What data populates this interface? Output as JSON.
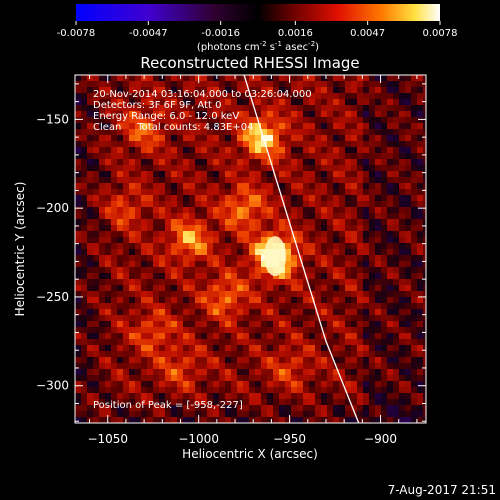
{
  "chart_data": {
    "type": "heatmap",
    "title": "Reconstructed RHESSI Image",
    "xlabel": "Heliocentric X (arcsec)",
    "ylabel": "Heliocentric Y (arcsec)",
    "xlim": [
      -1068,
      -875
    ],
    "ylim": [
      -321,
      -125
    ],
    "x_ticks": [
      -1050,
      -1000,
      -950,
      -900
    ],
    "y_ticks": [
      -150,
      -200,
      -250,
      -300
    ],
    "colorbar": {
      "min": -0.0078,
      "max": 0.0078,
      "ticks": [
        -0.0078,
        -0.0047,
        -0.0016,
        0.0016,
        0.0047,
        0.0078
      ],
      "tick_labels": [
        "-0.0078",
        "-0.0047",
        "-0.0016",
        "0.0016",
        "0.0047",
        "0.0078"
      ],
      "units_prefix": "(photons cm",
      "units_sup1": "-2",
      "units_mid": " s",
      "units_sup2": "-1",
      "units_mid2": " asec",
      "units_sup3": "-2",
      "units_suffix": ")"
    },
    "annotations": [
      "20-Nov-2014 03:16:04.000 to 03:26:04.000",
      "Detectors: 3F 6F 9F, Att 0",
      "Energy Range: 6.0 - 12.0 keV",
      "Clean     Total counts: 4.83E+04"
    ],
    "peak_text": "Position of Peak = [-958,-227]",
    "peak": {
      "x": -958,
      "y": -227
    },
    "limb_curve": [
      [
        -975,
        -125
      ],
      [
        -960,
        -175
      ],
      [
        -945,
        -225
      ],
      [
        -930,
        -275
      ],
      [
        -912,
        -321
      ]
    ],
    "limb_color": "#ffffff",
    "sources": [
      {
        "x": -958,
        "y": -227,
        "intensity": 1.0
      },
      {
        "x": -965,
        "y": -160,
        "intensity": 0.75
      },
      {
        "x": -1005,
        "y": -218,
        "intensity": 0.55
      },
      {
        "x": -975,
        "y": -200,
        "intensity": 0.5
      },
      {
        "x": -1030,
        "y": -155,
        "intensity": 0.4
      },
      {
        "x": -1025,
        "y": -270,
        "intensity": 0.35
      },
      {
        "x": -1040,
        "y": -200,
        "intensity": 0.3
      },
      {
        "x": -985,
        "y": -250,
        "intensity": 0.45
      },
      {
        "x": -1010,
        "y": -290,
        "intensity": 0.3
      },
      {
        "x": -950,
        "y": -290,
        "intensity": 0.28
      }
    ]
  },
  "footer": {
    "timestamp": "7-Aug-2017 21:51"
  }
}
